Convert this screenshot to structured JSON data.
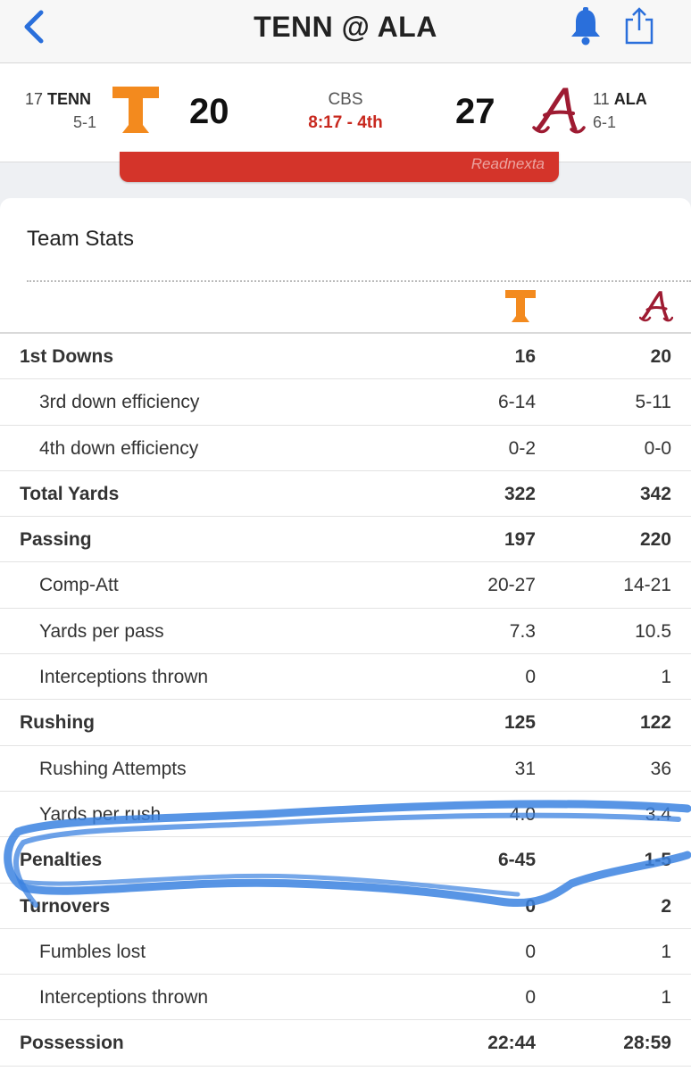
{
  "header": {
    "title": "TENN @ ALA",
    "icons": {
      "back": "chevron-left-icon",
      "bell": "bell-icon",
      "share": "share-icon"
    },
    "accent_color": "#2a6fdb"
  },
  "game": {
    "away": {
      "rank": "17",
      "abbr": "TENN",
      "record": "5-1",
      "score": "20",
      "color": "#f38a1e"
    },
    "home": {
      "rank": "11",
      "abbr": "ALA",
      "record": "6-1",
      "score": "27",
      "color": "#9e1b32"
    },
    "network": "CBS",
    "clock": "8:17 - 4th"
  },
  "red_button": {
    "label": "Readnexta"
  },
  "team_stats": {
    "title": "Team Stats",
    "rows": [
      {
        "label": "1st Downs",
        "tenn": "16",
        "ala": "20",
        "type": "main"
      },
      {
        "label": "3rd down efficiency",
        "tenn": "6-14",
        "ala": "5-11",
        "type": "sub"
      },
      {
        "label": "4th down efficiency",
        "tenn": "0-2",
        "ala": "0-0",
        "type": "sub"
      },
      {
        "label": "Total Yards",
        "tenn": "322",
        "ala": "342",
        "type": "main"
      },
      {
        "label": "Passing",
        "tenn": "197",
        "ala": "220",
        "type": "main"
      },
      {
        "label": "Comp-Att",
        "tenn": "20-27",
        "ala": "14-21",
        "type": "sub"
      },
      {
        "label": "Yards per pass",
        "tenn": "7.3",
        "ala": "10.5",
        "type": "sub"
      },
      {
        "label": "Interceptions thrown",
        "tenn": "0",
        "ala": "1",
        "type": "sub"
      },
      {
        "label": "Rushing",
        "tenn": "125",
        "ala": "122",
        "type": "main"
      },
      {
        "label": "Rushing Attempts",
        "tenn": "31",
        "ala": "36",
        "type": "sub"
      },
      {
        "label": "Yards per rush",
        "tenn": "4.0",
        "ala": "3.4",
        "type": "sub"
      },
      {
        "label": "Penalties",
        "tenn": "6-45",
        "ala": "1-5",
        "type": "main"
      },
      {
        "label": "Turnovers",
        "tenn": "0",
        "ala": "2",
        "type": "main"
      },
      {
        "label": "Fumbles lost",
        "tenn": "0",
        "ala": "1",
        "type": "sub"
      },
      {
        "label": "Interceptions thrown",
        "tenn": "0",
        "ala": "1",
        "type": "sub"
      },
      {
        "label": "Possession",
        "tenn": "22:44",
        "ala": "28:59",
        "type": "main"
      }
    ]
  },
  "annotation": {
    "color": "#3b82e0",
    "shape": "hand-drawn-ellipse",
    "highlights": "Penalties"
  }
}
